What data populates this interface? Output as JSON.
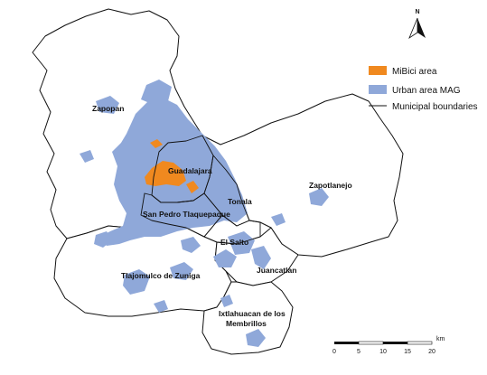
{
  "north_arrow": {
    "label": "N"
  },
  "legend": {
    "items": [
      {
        "label": "MiBici area",
        "color": "#f0891f",
        "kind": "patch"
      },
      {
        "label": "Urban area MAG",
        "color": "#8fa8d9",
        "kind": "patch"
      },
      {
        "label": "Municipal boundaries",
        "color": "#111111",
        "kind": "line"
      }
    ]
  },
  "municipalities": {
    "zapopan": "Zapopan",
    "guadalajara": "Guadalajara",
    "tonala": "Tonala",
    "zapotlanejo": "Zapotlanejo",
    "san_pedro": "San Pedro Tlaquepaque",
    "el_salto": "El Salto",
    "tlajomulco": "Tlajomulco de Zuniga",
    "juancatlan": "Juancatlan",
    "ixtlahuacan_1": "Ixtlahuacan de los",
    "ixtlahuacan_2": "Membrillos"
  },
  "scale_bar": {
    "ticks": [
      "0",
      "5",
      "10",
      "15",
      "20"
    ],
    "unit": "km"
  }
}
